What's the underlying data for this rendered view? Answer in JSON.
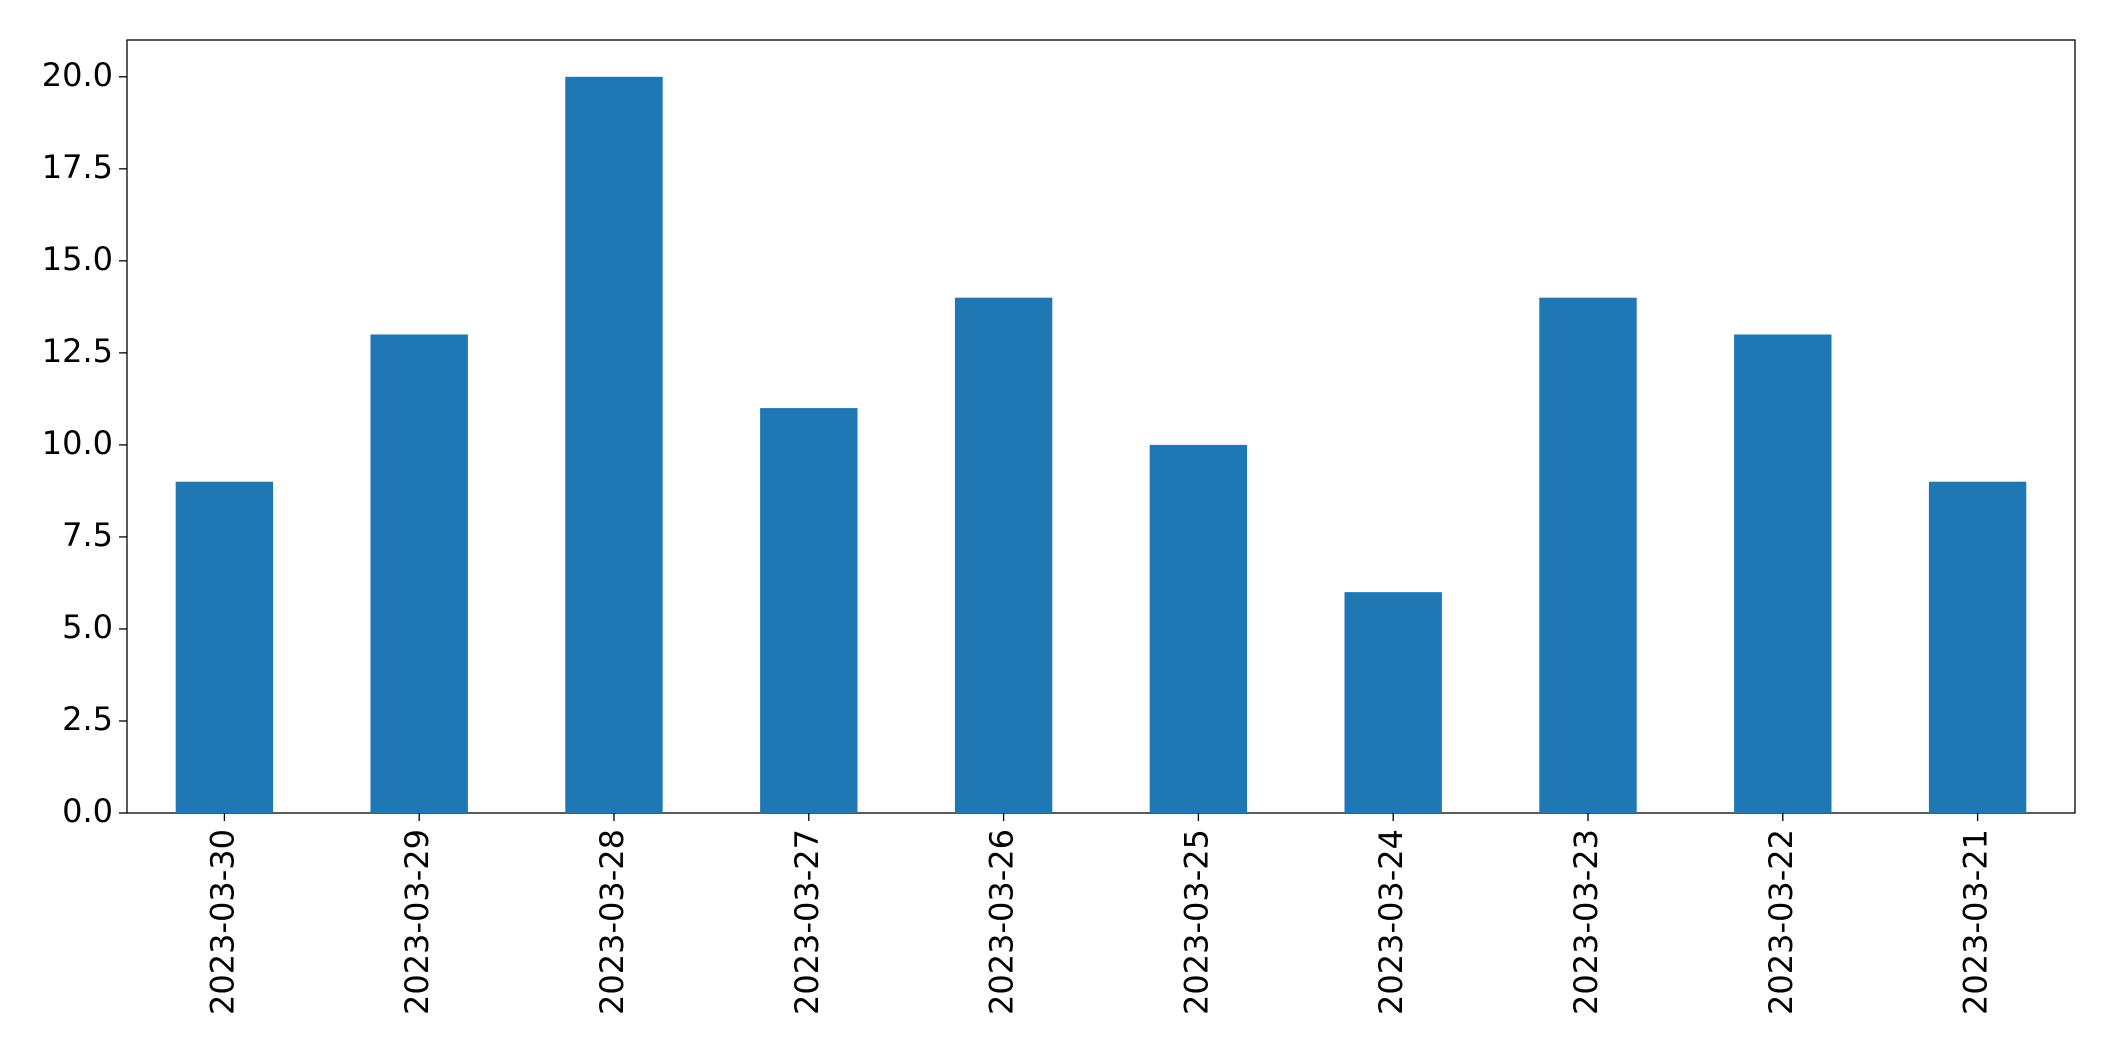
{
  "chart_data": {
    "type": "bar",
    "categories": [
      "2023-03-30",
      "2023-03-29",
      "2023-03-28",
      "2023-03-27",
      "2023-03-26",
      "2023-03-25",
      "2023-03-24",
      "2023-03-23",
      "2023-03-22",
      "2023-03-21"
    ],
    "values": [
      9,
      13,
      20,
      11,
      14,
      10,
      6,
      14,
      13,
      9
    ],
    "color": "#1f77b4",
    "ylim": [
      0,
      21
    ],
    "yticks": [
      {
        "value": 0,
        "label": "0.0"
      },
      {
        "value": 2.5,
        "label": "2.5"
      },
      {
        "value": 5,
        "label": "5.0"
      },
      {
        "value": 7.5,
        "label": "7.5"
      },
      {
        "value": 10,
        "label": "10.0"
      },
      {
        "value": 12.5,
        "label": "12.5"
      },
      {
        "value": 15,
        "label": "15.0"
      },
      {
        "value": 17.5,
        "label": "17.5"
      },
      {
        "value": 20,
        "label": "20.0"
      }
    ],
    "grid": false
  }
}
